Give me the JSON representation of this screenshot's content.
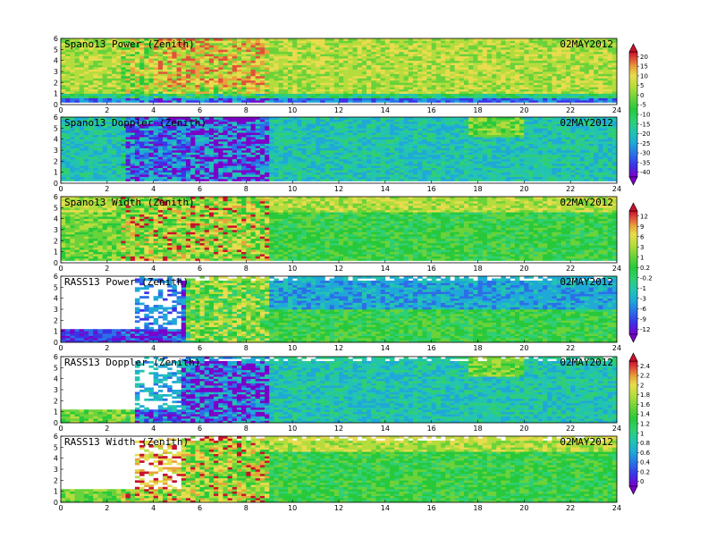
{
  "chart_data": {
    "type": "heatmap",
    "date_label": "02MAY2012",
    "xlim": [
      0,
      24
    ],
    "xticks": [
      0,
      2,
      4,
      6,
      8,
      10,
      12,
      14,
      16,
      18,
      20,
      22,
      24
    ],
    "ylim": [
      0,
      6
    ],
    "yticks": [
      0,
      1,
      2,
      3,
      4,
      5,
      6
    ],
    "panels": [
      {
        "title": "Spano13 Power (Zenith)",
        "quantity": "power",
        "radar": "spano",
        "colorbar": 0
      },
      {
        "title": "Spano13 Doppler (Zenith)",
        "quantity": "doppler",
        "radar": "spano",
        "colorbar": 0
      },
      {
        "title": "Spano13 Width (Zenith)",
        "quantity": "width",
        "radar": "spano",
        "colorbar": 1
      },
      {
        "title": "RASS13 Power (Zenith)",
        "quantity": "power",
        "radar": "rass",
        "colorbar": 1
      },
      {
        "title": "RASS13 Doppler (Zenith)",
        "quantity": "doppler",
        "radar": "rass",
        "colorbar": 2
      },
      {
        "title": "RASS13 Width (Zenith)",
        "quantity": "width",
        "radar": "rass",
        "colorbar": 2
      }
    ],
    "colorbars": [
      {
        "labels": [
          "20",
          "15",
          "10",
          "5",
          "0",
          "-5",
          "-10",
          "-15",
          "-20",
          "-25",
          "-30",
          "-35",
          "-40"
        ]
      },
      {
        "labels": [
          "12",
          "9",
          "6",
          "3",
          "1",
          "0.2",
          "-0.2",
          "-1",
          "-3",
          "-6",
          "-9",
          "-12"
        ]
      },
      {
        "labels": [
          "2.4",
          "2.2",
          "2",
          "1.8",
          "1.6",
          "1.4",
          "1.2",
          "1",
          "0.8",
          "0.6",
          "0.4",
          "0.2",
          "0"
        ]
      }
    ],
    "palette": [
      "#7a00c8",
      "#3b32e6",
      "#2b6ee8",
      "#1fa8d8",
      "#22c4b0",
      "#2fcf74",
      "#27c93b",
      "#6ad23a",
      "#b4dc3c",
      "#e8dc4e",
      "#e8a23a",
      "#e0523a",
      "#c8102a"
    ]
  }
}
